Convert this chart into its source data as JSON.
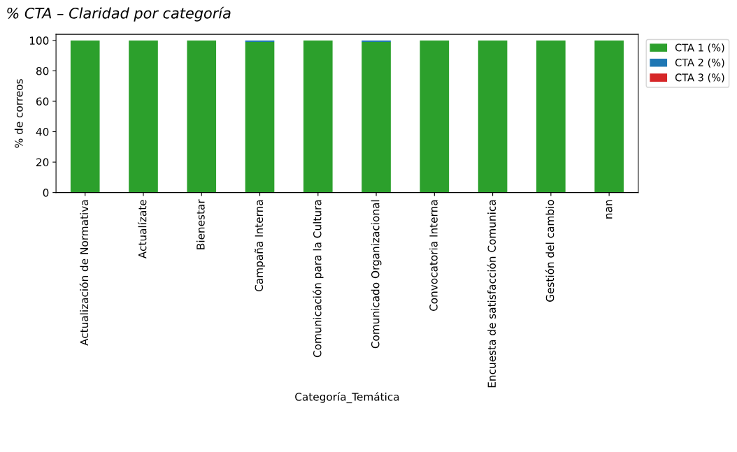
{
  "chart_data": {
    "type": "bar",
    "stacked": true,
    "title": "% CTA – Claridad por categoría",
    "xlabel": "Categoría_Temática",
    "ylabel": "% de correos",
    "categories": [
      "Actualización de Normativa",
      "Actualízate",
      "Bienestar",
      "Campaña Interna",
      "Comunicación para la Cultura",
      "Comunicado Organizacional",
      "Convocatoria Interna",
      "Encuesta de satisfacción Comunica",
      "Gestión del cambio",
      "nan"
    ],
    "series": [
      {
        "name": "CTA 1 (%)",
        "color": "#2ca02c",
        "values": [
          100,
          100,
          100,
          99,
          100,
          99,
          100,
          100,
          100,
          100
        ]
      },
      {
        "name": "CTA 2 (%)",
        "color": "#1f77b4",
        "values": [
          0,
          0,
          0,
          1,
          0,
          1,
          0,
          0,
          0,
          0
        ]
      },
      {
        "name": "CTA 3 (%)",
        "color": "#d62728",
        "values": [
          0,
          0,
          0,
          0,
          0,
          0,
          0,
          0,
          0,
          0
        ]
      }
    ],
    "ylim": [
      0,
      104
    ],
    "yticks": [
      0,
      20,
      40,
      60,
      80,
      100
    ],
    "legend": "top right"
  }
}
